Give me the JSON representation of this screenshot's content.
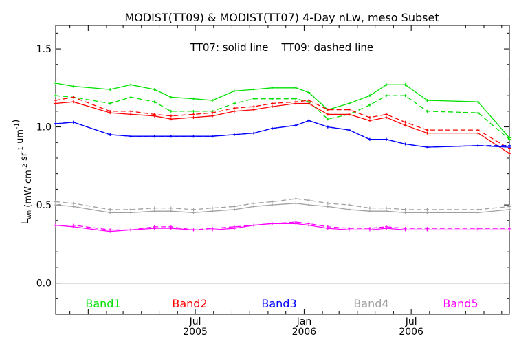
{
  "chart_data": {
    "type": "line",
    "title": "MODIST(TT09) & MODIST(TT07) 4-Day nLw, meso Subset",
    "annotation": "TT07: solid line    TT09: dashed line",
    "ylabel": "L_wn (mW cm^-2 sr^-1 um^-1)",
    "xlabel": "",
    "xlim": [
      "2004-11-07",
      "2006-12-14"
    ],
    "ylim": [
      -0.2,
      1.65
    ],
    "y_ticks": [
      "0.0",
      "0.5",
      "1.0",
      "1.5"
    ],
    "x_ticks": [
      {
        "month": "Jul",
        "year": "2005",
        "date": "2005-07-01"
      },
      {
        "month": "Jan",
        "year": "2006",
        "date": "2006-01-01"
      },
      {
        "month": "Jul",
        "year": "2006",
        "date": "2006-07-01"
      }
    ],
    "grid": false,
    "legend_position": "bottom",
    "line_styles": {
      "TT07": "solid",
      "TT09": "dashed"
    },
    "dates": [
      "2004-11-07",
      "2004-12-07",
      "2005-02-07",
      "2005-03-14",
      "2005-04-23",
      "2005-05-21",
      "2005-06-28",
      "2005-07-30",
      "2005-09-05",
      "2005-10-08",
      "2005-11-08",
      "2005-12-18",
      "2006-01-09",
      "2006-02-10",
      "2006-03-18",
      "2006-04-22",
      "2006-05-20",
      "2006-06-21",
      "2006-07-28",
      "2006-10-22",
      "2006-12-14"
    ],
    "series": [
      {
        "name": "Band1",
        "sensor": "TT07",
        "color": "#00e000",
        "values": [
          1.28,
          1.26,
          1.24,
          1.27,
          1.24,
          1.19,
          1.18,
          1.17,
          1.23,
          1.24,
          1.25,
          1.25,
          1.22,
          1.11,
          1.15,
          1.2,
          1.27,
          1.27,
          1.17,
          1.16,
          0.93
        ]
      },
      {
        "name": "Band1",
        "sensor": "TT09",
        "color": "#00e000",
        "values": [
          1.2,
          1.19,
          1.15,
          1.19,
          1.16,
          1.1,
          1.1,
          1.1,
          1.15,
          1.18,
          1.18,
          1.18,
          1.16,
          1.05,
          1.08,
          1.14,
          1.2,
          1.2,
          1.1,
          1.09,
          0.92
        ]
      },
      {
        "name": "Band2",
        "sensor": "TT07",
        "color": "#ff0000",
        "values": [
          1.15,
          1.16,
          1.09,
          1.08,
          1.07,
          1.05,
          1.06,
          1.07,
          1.1,
          1.11,
          1.13,
          1.15,
          1.15,
          1.08,
          1.08,
          1.04,
          1.06,
          1.01,
          0.96,
          0.96,
          0.83
        ]
      },
      {
        "name": "Band2",
        "sensor": "TT09",
        "color": "#ff0000",
        "values": [
          1.17,
          1.19,
          1.1,
          1.1,
          1.08,
          1.07,
          1.08,
          1.09,
          1.12,
          1.13,
          1.15,
          1.16,
          1.17,
          1.11,
          1.11,
          1.06,
          1.08,
          1.03,
          0.98,
          0.98,
          0.86
        ]
      },
      {
        "name": "Band3",
        "sensor": "TT07",
        "color": "#0000ff",
        "values": [
          1.02,
          1.03,
          0.95,
          0.94,
          0.94,
          0.94,
          0.94,
          0.94,
          0.95,
          0.96,
          0.99,
          1.01,
          1.04,
          1.0,
          0.98,
          0.92,
          0.92,
          0.89,
          0.87,
          0.88,
          0.87
        ]
      },
      {
        "name": "Band3",
        "sensor": "TT09",
        "color": "#0000ff",
        "values": [
          1.02,
          1.03,
          0.95,
          0.94,
          0.94,
          0.94,
          0.94,
          0.94,
          0.95,
          0.96,
          0.99,
          1.01,
          1.04,
          1.0,
          0.98,
          0.92,
          0.92,
          0.89,
          0.87,
          0.88,
          0.88
        ]
      },
      {
        "name": "Band4",
        "sensor": "TT07",
        "color": "#a0a0a0",
        "values": [
          0.5,
          0.49,
          0.45,
          0.45,
          0.46,
          0.46,
          0.45,
          0.46,
          0.47,
          0.49,
          0.5,
          0.51,
          0.5,
          0.49,
          0.47,
          0.46,
          0.46,
          0.45,
          0.45,
          0.45,
          0.47
        ]
      },
      {
        "name": "Band4",
        "sensor": "TT09",
        "color": "#a0a0a0",
        "values": [
          0.52,
          0.51,
          0.47,
          0.47,
          0.48,
          0.48,
          0.47,
          0.48,
          0.49,
          0.51,
          0.52,
          0.54,
          0.53,
          0.51,
          0.5,
          0.48,
          0.48,
          0.47,
          0.47,
          0.47,
          0.49
        ]
      },
      {
        "name": "Band5",
        "sensor": "TT07",
        "color": "#ff00ff",
        "values": [
          0.37,
          0.36,
          0.33,
          0.34,
          0.35,
          0.35,
          0.34,
          0.34,
          0.35,
          0.37,
          0.38,
          0.38,
          0.37,
          0.35,
          0.34,
          0.34,
          0.35,
          0.34,
          0.34,
          0.34,
          0.34
        ]
      },
      {
        "name": "Band5",
        "sensor": "TT09",
        "color": "#ff00ff",
        "values": [
          0.37,
          0.37,
          0.34,
          0.34,
          0.36,
          0.36,
          0.34,
          0.35,
          0.36,
          0.37,
          0.38,
          0.39,
          0.38,
          0.36,
          0.35,
          0.35,
          0.36,
          0.35,
          0.35,
          0.35,
          0.35
        ]
      }
    ],
    "legend": [
      {
        "label": "Band1",
        "color": "#00e000"
      },
      {
        "label": "Band2",
        "color": "#ff0000"
      },
      {
        "label": "Band3",
        "color": "#0000ff"
      },
      {
        "label": "Band4",
        "color": "#a0a0a0"
      },
      {
        "label": "Band5",
        "color": "#ff00ff"
      }
    ]
  }
}
